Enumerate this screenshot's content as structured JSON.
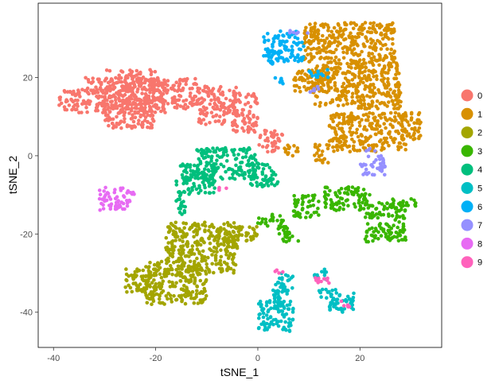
{
  "chart_data": {
    "type": "scatter",
    "title": "",
    "xlabel": "tSNE_1",
    "ylabel": "tSNE_2",
    "xlim": [
      -43,
      36
    ],
    "ylim": [
      -49,
      39
    ],
    "x_ticks": [
      -40,
      -20,
      0,
      20
    ],
    "y_ticks": [
      -40,
      -20,
      0,
      20
    ],
    "x_tick_labels": [
      "-40",
      "-20",
      "0",
      "20"
    ],
    "y_tick_labels": [
      "-40",
      "-20",
      "0",
      "20"
    ],
    "grid": false,
    "legend_position": "right",
    "series": [
      {
        "name": "0",
        "color": "#F8766D",
        "regions": [
          [
            -39,
            11,
            -26,
            17
          ],
          [
            -30,
            7,
            -20,
            22
          ],
          [
            -20,
            12,
            -12,
            20
          ],
          [
            -12,
            8,
            -4,
            18
          ],
          [
            -5,
            6,
            0,
            16
          ],
          [
            0,
            1,
            4,
            7
          ],
          [
            4,
            3,
            5,
            6
          ],
          [
            -27,
            11,
            -18,
            20
          ],
          [
            -34,
            16,
            -28,
            20
          ]
        ]
      },
      {
        "name": "1",
        "color": "#D89000",
        "regions": [
          [
            9,
            24,
            27,
            34
          ],
          [
            11,
            12,
            28,
            24
          ],
          [
            14,
            1,
            29,
            11
          ],
          [
            28,
            4,
            32,
            11
          ],
          [
            7,
            16,
            14,
            22
          ],
          [
            11,
            -2,
            14,
            3
          ],
          [
            5,
            0,
            8,
            3
          ]
        ]
      },
      {
        "name": "2",
        "color": "#A3A500",
        "regions": [
          [
            -22,
            -38,
            -10,
            -27
          ],
          [
            -18,
            -30,
            -4,
            -17
          ],
          [
            -8,
            -22,
            0,
            -18
          ],
          [
            -26,
            -35,
            -20,
            -29
          ]
        ]
      },
      {
        "name": "3",
        "color": "#39B600",
        "regions": [
          [
            13,
            -14,
            22,
            -8
          ],
          [
            21,
            -22,
            29,
            -12
          ],
          [
            26,
            -13,
            31,
            -11
          ],
          [
            4,
            -22,
            8,
            -18
          ],
          [
            7,
            -16,
            12,
            -10
          ],
          [
            0,
            -18,
            5,
            -15
          ]
        ]
      },
      {
        "name": "4",
        "color": "#00BF7D",
        "regions": [
          [
            -16,
            -10,
            -8,
            -2
          ],
          [
            -12,
            -6,
            0,
            2
          ],
          [
            -2,
            -8,
            4,
            -2
          ],
          [
            -16,
            -15,
            -14,
            -9
          ],
          [
            -8,
            1,
            -6,
            2
          ]
        ]
      },
      {
        "name": "5",
        "color": "#00BFC4",
        "regions": [
          [
            0,
            -45,
            7,
            -37
          ],
          [
            3,
            -38,
            6,
            -32
          ],
          [
            4,
            -35,
            7,
            -30
          ],
          [
            14,
            -40,
            19,
            -35
          ],
          [
            12,
            -37,
            16,
            -34
          ],
          [
            11,
            -32,
            14,
            -29
          ]
        ]
      },
      {
        "name": "6",
        "color": "#00B0F6",
        "regions": [
          [
            1,
            24,
            9,
            32
          ],
          [
            3,
            18,
            5,
            20
          ],
          [
            2,
            23,
            4,
            25
          ],
          [
            10,
            20,
            14,
            22
          ]
        ]
      },
      {
        "name": "7",
        "color": "#9590FF",
        "regions": [
          [
            20,
            -5,
            25,
            0
          ],
          [
            21,
            1,
            23,
            2
          ],
          [
            6,
            31,
            10,
            32
          ],
          [
            10,
            16,
            12,
            18
          ]
        ]
      },
      {
        "name": "8",
        "color": "#E76BF3",
        "regions": [
          [
            -31,
            -14,
            -25,
            -8
          ],
          [
            -26,
            -11,
            -24,
            -9
          ]
        ]
      },
      {
        "name": "9",
        "color": "#FF62BC",
        "regions": [
          [
            3,
            -30,
            5,
            -29
          ],
          [
            11,
            -33,
            14,
            -31
          ],
          [
            -8,
            -9,
            -6,
            -8
          ],
          [
            16,
            -39,
            18,
            -37
          ]
        ]
      }
    ],
    "legend_entries": [
      "0",
      "1",
      "2",
      "3",
      "4",
      "5",
      "6",
      "7",
      "8",
      "9"
    ]
  }
}
